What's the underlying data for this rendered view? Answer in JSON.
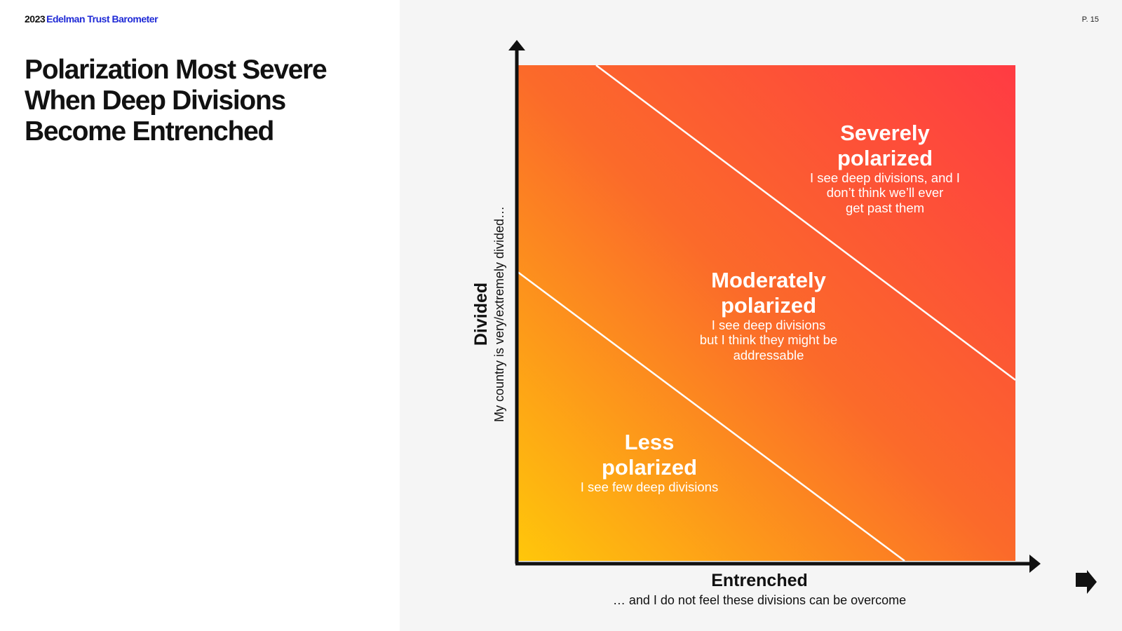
{
  "header": {
    "year": "2023",
    "brand": "Edelman Trust Barometer",
    "page": "P. 15",
    "brand_color": "#1f2ad6"
  },
  "title_lines": [
    "Polarization Most Severe",
    "When Deep Divisions",
    "Become Entrenched"
  ],
  "diagram": {
    "y_axis": {
      "title": "Divided",
      "subtitle": "My country is very/extremely divided…"
    },
    "x_axis": {
      "title": "Entrenched",
      "subtitle": "… and I do not feel these divisions can be overcome"
    },
    "gradient": {
      "low": "#ffc70a",
      "mid": "#fb6a2a",
      "high": "#ff3b43"
    },
    "zones": [
      {
        "heading": [
          "Severely",
          "polarized"
        ],
        "body": [
          "I see deep divisions, and I",
          "don’t think we’ll ever",
          "get past them"
        ]
      },
      {
        "heading": [
          "Moderately",
          "polarized"
        ],
        "body": [
          "I see deep divisions",
          "but I think they might be",
          "addressable"
        ]
      },
      {
        "heading": [
          "Less",
          "polarized"
        ],
        "body": [
          "I see few deep divisions"
        ]
      }
    ]
  },
  "nav": {
    "icon": "next-arrow-icon"
  }
}
